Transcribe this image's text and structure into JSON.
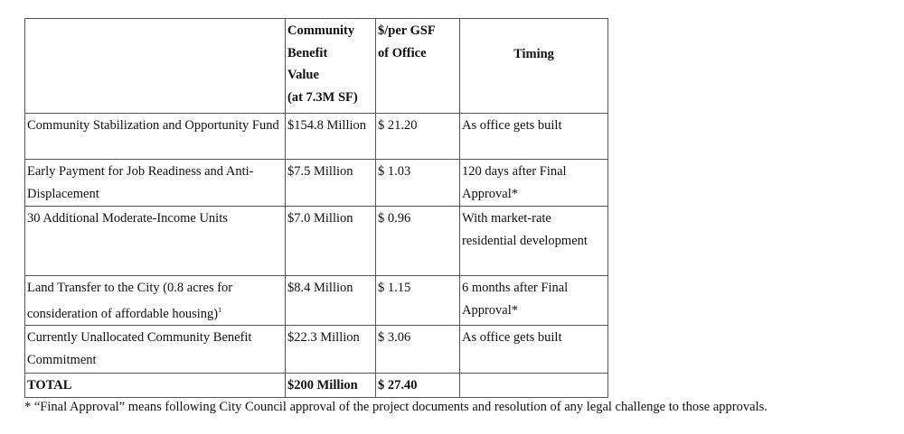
{
  "table": {
    "headers": [
      "",
      "Community Benefit Value (at 7.3M SF)",
      "$/per GSF of Office",
      "Timing"
    ],
    "header_lines": {
      "value": [
        "Community",
        "Benefit",
        "Value",
        "(at 7.3M SF)"
      ],
      "per_gsf": [
        "$/per GSF",
        "of Office"
      ]
    },
    "rows": [
      {
        "item": "Community Stabilization and Opportunity Fund",
        "value": "$154.8 Million",
        "per_gsf": "$ 21.20",
        "timing": "As office gets built"
      },
      {
        "item": "Early Payment for Job Readiness and Anti-Displacement",
        "value": "$7.5 Million",
        "per_gsf": "$ 1.03",
        "timing": "120 days after Final Approval*"
      },
      {
        "item": "30 Additional Moderate-Income Units",
        "value": "$7.0 Million",
        "per_gsf": "$ 0.96",
        "timing": "With market-rate residential development"
      },
      {
        "item": "Land Transfer to the City (0.8 acres for consideration of affordable housing)",
        "footnote_mark": "1",
        "value": "$8.4 Million",
        "per_gsf": "$ 1.15",
        "timing": "6 months after Final Approval*"
      },
      {
        "item": "Currently Unallocated Community Benefit Commitment",
        "value": "$22.3 Million",
        "per_gsf": "$ 3.06",
        "timing": "As office gets built"
      }
    ],
    "total": {
      "item": "TOTAL",
      "value": "$200 Million",
      "per_gsf": "$ 27.40",
      "timing": ""
    }
  },
  "footnote": "* “Final Approval” means following City Council approval of the project documents and resolution of any legal challenge to those approvals."
}
